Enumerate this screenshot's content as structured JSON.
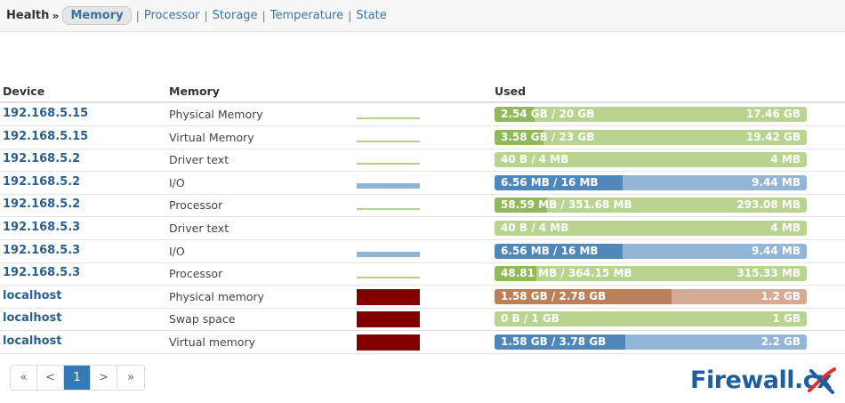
{
  "breadcrumb": {
    "title": "Health",
    "separator": "»",
    "active_tab": "Memory",
    "tabs": [
      "Processor",
      "Storage",
      "Temperature",
      "State"
    ],
    "divider": "|"
  },
  "table": {
    "headers": {
      "device": "Device",
      "memory": "Memory",
      "used": "Used"
    },
    "rows": [
      {
        "device": "192.168.5.15",
        "memory": "Physical Memory",
        "graph": "line-green",
        "used_label": "2.54 GB / 20 GB",
        "free_label": "17.46 GB",
        "used_fraction": 0.127,
        "fill_color": "#8fb95a",
        "track_color": "#b8d48f"
      },
      {
        "device": "192.168.5.15",
        "memory": "Virtual Memory",
        "graph": "line-green",
        "used_label": "3.58 GB / 23 GB",
        "free_label": "19.42 GB",
        "used_fraction": 0.156,
        "fill_color": "#8fb95a",
        "track_color": "#b8d48f"
      },
      {
        "device": "192.168.5.2",
        "memory": "Driver text",
        "graph": "line-green",
        "used_label": "40 B / 4 MB",
        "free_label": "4 MB",
        "used_fraction": 0.0,
        "fill_color": "#8fb95a",
        "track_color": "#b8d48f"
      },
      {
        "device": "192.168.5.2",
        "memory": "I/O",
        "graph": "line-blue",
        "used_label": "6.56 MB / 16 MB",
        "free_label": "9.44 MB",
        "used_fraction": 0.41,
        "fill_color": "#4f87b9",
        "track_color": "#93b6d8"
      },
      {
        "device": "192.168.5.2",
        "memory": "Processor",
        "graph": "line-green",
        "used_label": "58.59 MB / 351.68 MB",
        "free_label": "293.08 MB",
        "used_fraction": 0.167,
        "fill_color": "#8fb95a",
        "track_color": "#b8d48f"
      },
      {
        "device": "192.168.5.3",
        "memory": "Driver text",
        "graph": "none",
        "used_label": "40 B / 4 MB",
        "free_label": "4 MB",
        "used_fraction": 0.0,
        "fill_color": "#8fb95a",
        "track_color": "#b8d48f"
      },
      {
        "device": "192.168.5.3",
        "memory": "I/O",
        "graph": "line-blue",
        "used_label": "6.56 MB / 16 MB",
        "free_label": "9.44 MB",
        "used_fraction": 0.41,
        "fill_color": "#4f87b9",
        "track_color": "#93b6d8"
      },
      {
        "device": "192.168.5.3",
        "memory": "Processor",
        "graph": "line-green",
        "used_label": "48.81 MB / 364.15 MB",
        "free_label": "315.33 MB",
        "used_fraction": 0.134,
        "fill_color": "#8fb95a",
        "track_color": "#b8d48f"
      },
      {
        "device": "localhost",
        "memory": "Physical memory",
        "graph": "block-red",
        "used_label": "1.58 GB / 2.78 GB",
        "free_label": "1.2 GB",
        "used_fraction": 0.568,
        "fill_color": "#b9805a",
        "track_color": "#d6ab93"
      },
      {
        "device": "localhost",
        "memory": "Swap space",
        "graph": "block-red",
        "used_label": "0 B / 1 GB",
        "free_label": "1 GB",
        "used_fraction": 0.0,
        "fill_color": "#8fb95a",
        "track_color": "#b8d48f"
      },
      {
        "device": "localhost",
        "memory": "Virtual memory",
        "graph": "block-red",
        "used_label": "1.58 GB / 3.78 GB",
        "free_label": "2.2 GB",
        "used_fraction": 0.418,
        "fill_color": "#4f87b9",
        "track_color": "#93b6d8"
      }
    ]
  },
  "pagination": {
    "first": "«",
    "prev": "<",
    "current": "1",
    "next": ">",
    "last": "»"
  },
  "logo": {
    "text": "Firewall.cx"
  }
}
